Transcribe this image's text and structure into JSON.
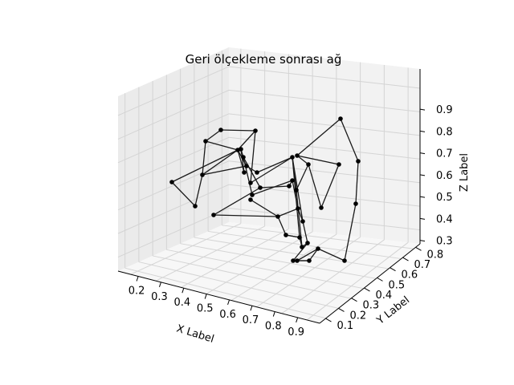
{
  "chart_data": {
    "type": "network-3d",
    "title": "Geri ölçekleme sonrası ağ",
    "xlabel": "X Label",
    "ylabel": "Y Label",
    "zlabel": "Z Label",
    "x_ticks": [
      "0.2",
      "0.3",
      "0.4",
      "0.5",
      "0.6",
      "0.7",
      "0.8",
      "0.9"
    ],
    "y_ticks": [
      "0.1",
      "0.2",
      "0.3",
      "0.4",
      "0.5",
      "0.6",
      "0.7",
      "0.8"
    ],
    "z_ticks": [
      "0.3",
      "0.4",
      "0.5",
      "0.6",
      "0.7",
      "0.8",
      "0.9"
    ],
    "grid": true,
    "node_color": "#000000",
    "edge_color": "#1a1a1a",
    "pane_colors": {
      "left": "#ebebeb",
      "back": "#f2f2f2",
      "floor": "#f7f7f7"
    }
  }
}
